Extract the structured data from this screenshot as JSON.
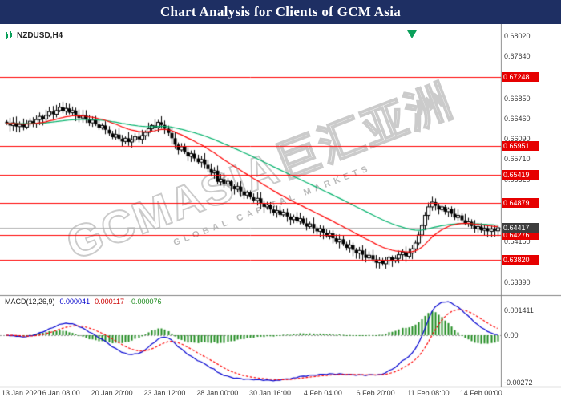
{
  "header": {
    "title": "Chart Analysis for Clients of GCM Asia"
  },
  "chart": {
    "symbol_label": "NZDUSD,H4"
  },
  "watermark": {
    "main": "GCMASIA巨汇亚洲",
    "sub": "GLOBAL CAPITAL MARKETS"
  },
  "macd_panel": {
    "label": "MACD(12,26,9)",
    "values": [
      "0.000041",
      "0.000117",
      "-0.000076"
    ]
  },
  "colors": {
    "header_bg": "#1e2f63",
    "level_line": "#ff0000",
    "badge_bg": "#e60000",
    "current_badge_bg": "#3d3d3d",
    "bull_candle": "#ffffff",
    "bear_candle": "#000000",
    "candle_outline": "#000000",
    "ma_fast": "#ff0000",
    "ma_slow": "#00b26b",
    "macd_line": "#0000d0",
    "signal_line": "#ff0000",
    "histogram": "#1f8b1f",
    "current_price_line": "#b0b0b0"
  },
  "chart_data": {
    "type": "candlestick",
    "symbol": "NZDUSD",
    "timeframe": "H4",
    "title": "NZDUSD,H4",
    "grid": "off",
    "x_labels": [
      "13 Jan 2020",
      "16 Jan 08:00",
      "20 Jan 20:00",
      "23 Jan 12:00",
      "28 Jan 00:00",
      "30 Jan 16:00",
      "4 Feb 04:00",
      "6 Feb 20:00",
      "11 Feb 08:00",
      "14 Feb 00:00"
    ],
    "bars_per_label": 16,
    "y_axis_ticks": [
      0.6802,
      0.6764,
      0.6685,
      0.6646,
      0.6609,
      0.6571,
      0.6532,
      0.6416,
      0.6339
    ],
    "level_lines": [
      0.67248,
      0.65951,
      0.65419,
      0.64879,
      0.64276,
      0.6382
    ],
    "current_price": 0.64417,
    "price_axis_range": [
      0.63149,
      0.68246
    ],
    "ma_fast": {
      "period": 21
    },
    "ma_slow": {
      "period": 55
    },
    "macd": {
      "fast": 12,
      "slow": 26,
      "signal_period": 9,
      "current_main": 4.1e-05,
      "current_signal": 0.000117,
      "current_histogram": -7.6e-05,
      "axis_ticks": [
        {
          "value": 0.001411,
          "label": "0.001411"
        },
        {
          "value": 0,
          "label": "0.00"
        },
        {
          "value": -0.00272,
          "label": "-0.00272"
        }
      ]
    },
    "closes": [
      0.6638,
      0.6634,
      0.6639,
      0.6632,
      0.6636,
      0.6631,
      0.6637,
      0.6642,
      0.6638,
      0.6645,
      0.6651,
      0.6646,
      0.6653,
      0.666,
      0.6655,
      0.6662,
      0.6668,
      0.6661,
      0.6666,
      0.6658,
      0.6662,
      0.6654,
      0.6648,
      0.6653,
      0.6645,
      0.6639,
      0.6644,
      0.6636,
      0.663,
      0.6634,
      0.6626,
      0.6619,
      0.6612,
      0.6617,
      0.6609,
      0.6604,
      0.661,
      0.6603,
      0.6607,
      0.6613,
      0.6608,
      0.6615,
      0.6621,
      0.6628,
      0.6634,
      0.663,
      0.664,
      0.6635,
      0.6628,
      0.662,
      0.661,
      0.6598,
      0.6588,
      0.6594,
      0.6584,
      0.6576,
      0.6581,
      0.6572,
      0.6565,
      0.657,
      0.656,
      0.6552,
      0.6545,
      0.6549,
      0.6528,
      0.6533,
      0.6524,
      0.6529,
      0.652,
      0.6514,
      0.6519,
      0.651,
      0.6503,
      0.6508,
      0.6499,
      0.6493,
      0.6497,
      0.6488,
      0.6481,
      0.6485,
      0.6476,
      0.647,
      0.6474,
      0.6466,
      0.6471,
      0.6463,
      0.6457,
      0.6462,
      0.6454,
      0.6459,
      0.645,
      0.6444,
      0.6449,
      0.6441,
      0.6435,
      0.644,
      0.6432,
      0.6426,
      0.6431,
      0.6422,
      0.6415,
      0.642,
      0.6411,
      0.6404,
      0.6409,
      0.64,
      0.6394,
      0.6399,
      0.6391,
      0.6385,
      0.639,
      0.6382,
      0.6376,
      0.6381,
      0.6374,
      0.638,
      0.6386,
      0.6379,
      0.6384,
      0.6391,
      0.6396,
      0.6388,
      0.6394,
      0.6402,
      0.6413,
      0.6428,
      0.6446,
      0.6465,
      0.6481,
      0.649,
      0.6483,
      0.6476,
      0.6481,
      0.6472,
      0.6477,
      0.6468,
      0.6461,
      0.6465,
      0.6456,
      0.645,
      0.6453,
      0.6445,
      0.644,
      0.6444,
      0.6437,
      0.6441,
      0.6435,
      0.6439,
      0.6436,
      0.64417
    ]
  }
}
